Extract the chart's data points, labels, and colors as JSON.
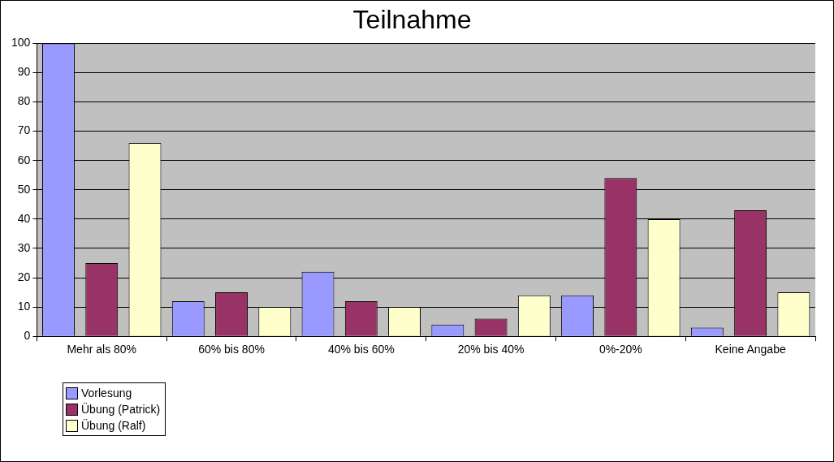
{
  "chart_data": {
    "type": "bar",
    "title": "Teilnahme",
    "categories": [
      "Mehr als 80%",
      "60% bis 80%",
      "40% bis 60%",
      "20% bis 40%",
      "0%-20%",
      "Keine Angabe"
    ],
    "series": [
      {
        "name": "Vorlesung",
        "color": "#9999ff",
        "values": [
          100,
          12,
          22,
          4,
          14,
          3
        ]
      },
      {
        "name": "Übung (Patrick)",
        "color": "#993366",
        "values": [
          25,
          15,
          12,
          6,
          54,
          43
        ]
      },
      {
        "name": "Übung (Ralf)",
        "color": "#ffffcc",
        "values": [
          66,
          10,
          10,
          14,
          40,
          15
        ]
      }
    ],
    "ylim": [
      0,
      100
    ],
    "yticks": [
      0,
      10,
      20,
      30,
      40,
      50,
      60,
      70,
      80,
      90,
      100
    ],
    "grid": "y",
    "legend": "bottom left"
  }
}
